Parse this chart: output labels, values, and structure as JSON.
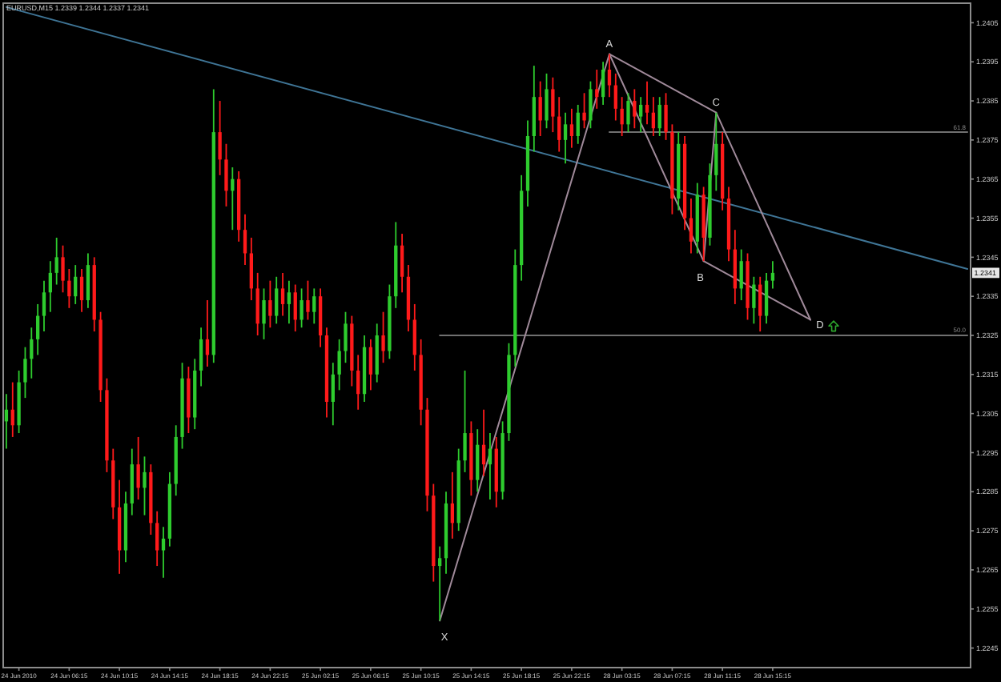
{
  "chart_data": {
    "type": "candlestick",
    "title": "EURUSD,M15 1.2339 1.2344 1.2337 1.2341",
    "categories": [
      null,
      null,
      "24 Jun 2010",
      null,
      null,
      null,
      null,
      null,
      null,
      null,
      "24 Jun 06:15",
      null,
      null,
      null,
      null,
      null,
      null,
      null,
      "24 Jun 10:15",
      null,
      null,
      null,
      null,
      null,
      null,
      null,
      "24 Jun 14:15",
      null,
      null,
      null,
      null,
      null,
      null,
      null,
      "24 Jun 18:15",
      null,
      null,
      null,
      null,
      null,
      null,
      null,
      "24 Jun 22:15",
      null,
      null,
      null,
      null,
      null,
      null,
      null,
      "25 Jun 02:15",
      null,
      null,
      null,
      null,
      null,
      null,
      null,
      "25 Jun 06:15",
      null,
      null,
      null,
      null,
      null,
      null,
      null,
      "25 Jun 10:15",
      null,
      null,
      null,
      null,
      null,
      null,
      null,
      "25 Jun 14:15",
      null,
      null,
      null,
      null,
      null,
      null,
      null,
      "25 Jun 18:15",
      null,
      null,
      null,
      null,
      null,
      null,
      null,
      "25 Jun 22:15",
      null,
      null,
      null,
      null,
      null,
      null,
      null,
      "28 Jun 03:15",
      null,
      null,
      null,
      null,
      null,
      null,
      null,
      "28 Jun 07:15",
      null,
      null,
      null,
      null,
      null,
      null,
      null,
      "28 Jun 11:15",
      null,
      null,
      null,
      null,
      null,
      null,
      null,
      "28 Jun 15:15",
      null,
      null,
      null,
      null,
      null,
      null,
      null,
      null,
      null,
      null,
      null,
      null,
      null,
      null,
      null,
      null,
      null,
      null,
      null,
      null,
      null,
      null,
      null,
      null,
      null,
      null,
      null,
      null,
      null,
      null,
      null
    ],
    "ylim": [
      1.224,
      1.241
    ],
    "yticks": [
      1.2245,
      1.2255,
      1.2265,
      1.2275,
      1.2285,
      1.2295,
      1.2305,
      1.2315,
      1.2325,
      1.2335,
      1.2345,
      1.2355,
      1.2365,
      1.2375,
      1.2385,
      1.2395,
      1.2405
    ],
    "series": [
      {
        "ohlc": [
          [
            1.2303,
            1.231,
            1.2296,
            1.2306
          ],
          [
            1.2306,
            1.2313,
            1.2299,
            1.2302
          ],
          [
            1.2302,
            1.2316,
            1.23,
            1.2313
          ],
          [
            1.2313,
            1.2322,
            1.2309,
            1.2319
          ],
          [
            1.2319,
            1.2327,
            1.2314,
            1.2324
          ],
          [
            1.2324,
            1.2333,
            1.232,
            1.233
          ],
          [
            1.233,
            1.2339,
            1.2326,
            1.2336
          ],
          [
            1.2336,
            1.2344,
            1.2331,
            1.2341
          ],
          [
            1.2341,
            1.235,
            1.2338,
            1.2345
          ],
          [
            1.2345,
            1.2348,
            1.2336,
            1.2339
          ],
          [
            1.2339,
            1.2342,
            1.2332,
            1.2335
          ],
          [
            1.2335,
            1.2343,
            1.2333,
            1.234
          ],
          [
            1.234,
            1.2342,
            1.2331,
            1.2334
          ],
          [
            1.2334,
            1.2346,
            1.2332,
            1.2343
          ],
          [
            1.2343,
            1.2345,
            1.2326,
            1.2329
          ],
          [
            1.2329,
            1.2331,
            1.2308,
            1.2311
          ],
          [
            1.2311,
            1.2314,
            1.229,
            1.2293
          ],
          [
            1.2293,
            1.2296,
            1.2278,
            1.2281
          ],
          [
            1.2281,
            1.2288,
            1.2264,
            1.227
          ],
          [
            1.227,
            1.2285,
            1.2267,
            1.2282
          ],
          [
            1.2282,
            1.2296,
            1.2279,
            1.2292
          ],
          [
            1.2292,
            1.2299,
            1.2283,
            1.2286
          ],
          [
            1.2286,
            1.2294,
            1.2279,
            1.229
          ],
          [
            1.229,
            1.2292,
            1.2274,
            1.2277
          ],
          [
            1.2277,
            1.228,
            1.2266,
            1.227
          ],
          [
            1.227,
            1.2276,
            1.2263,
            1.2273
          ],
          [
            1.2273,
            1.229,
            1.2271,
            1.2287
          ],
          [
            1.2287,
            1.2302,
            1.2284,
            1.2299
          ],
          [
            1.2299,
            1.2318,
            1.2296,
            1.2314
          ],
          [
            1.2314,
            1.2317,
            1.23,
            1.2304
          ],
          [
            1.2304,
            1.2319,
            1.2301,
            1.2316
          ],
          [
            1.2316,
            1.2327,
            1.2312,
            1.2324
          ],
          [
            1.2324,
            1.2334,
            1.2317,
            1.232
          ],
          [
            1.232,
            1.2388,
            1.2318,
            1.2377
          ],
          [
            1.2377,
            1.2385,
            1.2366,
            1.237
          ],
          [
            1.237,
            1.2374,
            1.2358,
            1.2362
          ],
          [
            1.2362,
            1.2368,
            1.2352,
            1.2365
          ],
          [
            1.2365,
            1.2367,
            1.2349,
            1.2352
          ],
          [
            1.2352,
            1.2356,
            1.2343,
            1.2346
          ],
          [
            1.2346,
            1.235,
            1.2334,
            1.2337
          ],
          [
            1.2337,
            1.2341,
            1.2325,
            1.2328
          ],
          [
            1.2328,
            1.2337,
            1.2324,
            1.2334
          ],
          [
            1.2334,
            1.2339,
            1.2327,
            1.233
          ],
          [
            1.233,
            1.234,
            1.2328,
            1.2337
          ],
          [
            1.2337,
            1.2341,
            1.233,
            1.2333
          ],
          [
            1.2333,
            1.2339,
            1.2328,
            1.2336
          ],
          [
            1.2336,
            1.2338,
            1.2326,
            1.2329
          ],
          [
            1.2329,
            1.2337,
            1.2327,
            1.2334
          ],
          [
            1.2334,
            1.2339,
            1.2329,
            1.2331
          ],
          [
            1.2331,
            1.2337,
            1.2328,
            1.2335
          ],
          [
            1.2335,
            1.2337,
            1.2322,
            1.2325
          ],
          [
            1.2325,
            1.2327,
            1.2304,
            1.2308
          ],
          [
            1.2308,
            1.2318,
            1.2302,
            1.2315
          ],
          [
            1.2315,
            1.2324,
            1.2311,
            1.2321
          ],
          [
            1.2321,
            1.2331,
            1.2318,
            1.2328
          ],
          [
            1.2328,
            1.233,
            1.2312,
            1.2316
          ],
          [
            1.2316,
            1.232,
            1.2306,
            1.231
          ],
          [
            1.231,
            1.2325,
            1.2308,
            1.2322
          ],
          [
            1.2322,
            1.2324,
            1.2311,
            1.2315
          ],
          [
            1.2315,
            1.2328,
            1.2313,
            1.2325
          ],
          [
            1.2325,
            1.2331,
            1.2318,
            1.2321
          ],
          [
            1.2321,
            1.2338,
            1.2319,
            1.2335
          ],
          [
            1.2335,
            1.2354,
            1.2332,
            1.2348
          ],
          [
            1.2348,
            1.2351,
            1.2336,
            1.234
          ],
          [
            1.234,
            1.2343,
            1.2326,
            1.2329
          ],
          [
            1.2329,
            1.2333,
            1.2316,
            1.232
          ],
          [
            1.232,
            1.2324,
            1.2302,
            1.2306
          ],
          [
            1.2306,
            1.2309,
            1.228,
            1.2284
          ],
          [
            1.2284,
            1.2287,
            1.2262,
            1.2266
          ],
          [
            1.2266,
            1.2271,
            1.2252,
            1.2268
          ],
          [
            1.2268,
            1.2285,
            1.2264,
            1.2282
          ],
          [
            1.2282,
            1.229,
            1.2273,
            1.2277
          ],
          [
            1.2277,
            1.2296,
            1.2275,
            1.2293
          ],
          [
            1.2293,
            1.2316,
            1.229,
            1.23
          ],
          [
            1.23,
            1.2303,
            1.2284,
            1.2288
          ],
          [
            1.2288,
            1.2301,
            1.2285,
            1.2297
          ],
          [
            1.2297,
            1.2306,
            1.2289,
            1.2292
          ],
          [
            1.2292,
            1.23,
            1.2283,
            1.2296
          ],
          [
            1.2296,
            1.2299,
            1.2281,
            1.2285
          ],
          [
            1.2285,
            1.2303,
            1.2283,
            1.23
          ],
          [
            1.23,
            1.2323,
            1.2298,
            1.232
          ],
          [
            1.232,
            1.2347,
            1.2317,
            1.2343
          ],
          [
            1.2343,
            1.2366,
            1.2339,
            1.2362
          ],
          [
            1.2362,
            1.238,
            1.2358,
            1.2376
          ],
          [
            1.2376,
            1.2394,
            1.2372,
            1.2386
          ],
          [
            1.2386,
            1.239,
            1.2376,
            1.238
          ],
          [
            1.238,
            1.2392,
            1.2378,
            1.2388
          ],
          [
            1.2388,
            1.2391,
            1.2377,
            1.2381
          ],
          [
            1.2381,
            1.2386,
            1.2372,
            1.2375
          ],
          [
            1.2375,
            1.2382,
            1.2369,
            1.2379
          ],
          [
            1.2379,
            1.2383,
            1.2373,
            1.2376
          ],
          [
            1.2376,
            1.2384,
            1.2374,
            1.2382
          ],
          [
            1.2382,
            1.2387,
            1.2378,
            1.238
          ],
          [
            1.238,
            1.239,
            1.2378,
            1.2388
          ],
          [
            1.2388,
            1.2393,
            1.2383,
            1.2386
          ],
          [
            1.2386,
            1.2395,
            1.2384,
            1.2393
          ],
          [
            1.2393,
            1.2397,
            1.2386,
            1.2389
          ],
          [
            1.2389,
            1.2392,
            1.238,
            1.2383
          ],
          [
            1.2383,
            1.2386,
            1.2376,
            1.2379
          ],
          [
            1.2379,
            1.2387,
            1.2377,
            1.2385
          ],
          [
            1.2385,
            1.2388,
            1.2378,
            1.2381
          ],
          [
            1.2381,
            1.2386,
            1.2377,
            1.2384
          ],
          [
            1.2384,
            1.239,
            1.2379,
            1.2382
          ],
          [
            1.2382,
            1.2386,
            1.2376,
            1.2378
          ],
          [
            1.2378,
            1.2386,
            1.2376,
            1.2384
          ],
          [
            1.2384,
            1.2387,
            1.2375,
            1.2377
          ],
          [
            1.2377,
            1.2379,
            1.2356,
            1.236
          ],
          [
            1.236,
            1.2377,
            1.2357,
            1.2374
          ],
          [
            1.2374,
            1.2376,
            1.2352,
            1.2355
          ],
          [
            1.2355,
            1.236,
            1.2346,
            1.2349
          ],
          [
            1.2349,
            1.2364,
            1.2346,
            1.2361
          ],
          [
            1.2361,
            1.2363,
            1.2344,
            1.235
          ],
          [
            1.235,
            1.2369,
            1.2348,
            1.2366
          ],
          [
            1.2366,
            1.2382,
            1.2362,
            1.2374
          ],
          [
            1.2374,
            1.2377,
            1.2357,
            1.236
          ],
          [
            1.236,
            1.2363,
            1.2344,
            1.2347
          ],
          [
            1.2347,
            1.2352,
            1.2333,
            1.2337
          ],
          [
            1.2337,
            1.2347,
            1.2334,
            1.2344
          ],
          [
            1.2344,
            1.2346,
            1.2329,
            1.2332
          ],
          [
            1.2332,
            1.234,
            1.2328,
            1.2338
          ],
          [
            1.2338,
            1.234,
            1.2326,
            1.233
          ],
          [
            1.233,
            1.2341,
            1.2328,
            1.2339
          ],
          [
            1.2339,
            1.2344,
            1.2337,
            1.2341
          ],
          null,
          null,
          null,
          null,
          null,
          null,
          null,
          null,
          null,
          null,
          null,
          null,
          null,
          null,
          null,
          null,
          null,
          null,
          null,
          null,
          null,
          null,
          null,
          null,
          null,
          null,
          null,
          null,
          null,
          null,
          null
        ],
        "colors": [
          "#2ecc2e",
          "#ff1a1a",
          "#2ecc2e",
          "#2ecc2e",
          "#2ecc2e",
          "#2ecc2e",
          "#2ecc2e",
          "#2ecc2e",
          "#2ecc2e",
          "#ff1a1a",
          "#ff1a1a",
          "#2ecc2e",
          "#ff1a1a",
          "#2ecc2e",
          "#ff1a1a",
          "#ff1a1a",
          "#ff1a1a",
          "#ff1a1a",
          "#ff1a1a",
          "#2ecc2e",
          "#2ecc2e",
          "#ff1a1a",
          "#2ecc2e",
          "#ff1a1a",
          "#ff1a1a",
          "#2ecc2e",
          "#2ecc2e",
          "#2ecc2e",
          "#2ecc2e",
          "#ff1a1a",
          "#2ecc2e",
          "#2ecc2e",
          "#ff1a1a",
          "#2ecc2e",
          "#ff1a1a",
          "#ff1a1a",
          "#2ecc2e",
          "#ff1a1a",
          "#ff1a1a",
          "#ff1a1a",
          "#ff1a1a",
          "#2ecc2e",
          "#ff1a1a",
          "#2ecc2e",
          "#ff1a1a",
          "#2ecc2e",
          "#ff1a1a",
          "#2ecc2e",
          "#ff1a1a",
          "#2ecc2e",
          "#ff1a1a",
          "#ff1a1a",
          "#2ecc2e",
          "#2ecc2e",
          "#2ecc2e",
          "#ff1a1a",
          "#ff1a1a",
          "#2ecc2e",
          "#ff1a1a",
          "#2ecc2e",
          "#ff1a1a",
          "#2ecc2e",
          "#2ecc2e",
          "#ff1a1a",
          "#ff1a1a",
          "#ff1a1a",
          "#ff1a1a",
          "#ff1a1a",
          "#ff1a1a",
          "#2ecc2e",
          "#2ecc2e",
          "#ff1a1a",
          "#2ecc2e",
          "#2ecc2e",
          "#ff1a1a",
          "#2ecc2e",
          "#ff1a1a",
          "#2ecc2e",
          "#ff1a1a",
          "#2ecc2e",
          "#2ecc2e",
          "#2ecc2e",
          "#2ecc2e",
          "#2ecc2e",
          "#2ecc2e",
          "#ff1a1a",
          "#2ecc2e",
          "#ff1a1a",
          "#ff1a1a",
          "#2ecc2e",
          "#ff1a1a",
          "#2ecc2e",
          "#ff1a1a",
          "#2ecc2e",
          "#ff1a1a",
          "#2ecc2e",
          "#ff1a1a",
          "#ff1a1a",
          "#ff1a1a",
          "#2ecc2e",
          "#ff1a1a",
          "#2ecc2e",
          "#ff1a1a",
          "#ff1a1a",
          "#2ecc2e",
          "#ff1a1a",
          "#ff1a1a",
          "#2ecc2e",
          "#ff1a1a",
          "#ff1a1a",
          "#2ecc2e",
          "#ff1a1a",
          "#2ecc2e",
          "#2ecc2e",
          "#ff1a1a",
          "#ff1a1a",
          "#ff1a1a",
          "#2ecc2e",
          "#ff1a1a",
          "#2ecc2e",
          "#ff1a1a",
          "#2ecc2e",
          "#2ecc2e",
          null,
          null,
          null,
          null,
          null,
          null,
          null,
          null,
          null,
          null,
          null,
          null,
          null,
          null,
          null,
          null,
          null,
          null,
          null,
          null,
          null,
          null,
          null,
          null,
          null,
          null,
          null,
          null,
          null,
          null,
          null
        ]
      },
      {
        "type": "line",
        "color": "#3f7596",
        "values": [
          1.2409,
          null,
          null,
          null,
          null,
          null,
          null,
          null,
          null,
          null,
          null,
          null,
          null,
          null,
          null,
          null,
          null,
          null,
          null,
          null,
          null,
          null,
          null,
          null,
          null,
          null,
          null,
          null,
          null,
          null,
          null,
          null,
          null,
          null,
          null,
          null,
          null,
          null,
          null,
          null,
          null,
          null,
          null,
          null,
          null,
          null,
          null,
          null,
          null,
          null,
          null,
          null,
          null,
          null,
          null,
          null,
          null,
          null,
          null,
          null,
          null,
          null,
          null,
          null,
          null,
          null,
          null,
          null,
          null,
          null,
          null,
          null,
          null,
          null,
          null,
          null,
          null,
          null,
          null,
          null,
          null,
          null,
          null,
          null,
          null,
          null,
          null,
          null,
          null,
          null,
          null,
          null,
          null,
          null,
          null,
          null,
          null,
          null,
          null,
          null,
          null,
          null,
          null,
          null,
          null,
          null,
          null,
          null,
          null,
          null,
          null,
          null,
          null,
          null,
          null,
          null,
          null,
          null,
          null,
          null,
          null,
          null,
          null,
          null,
          null,
          null,
          null,
          null,
          null,
          null,
          null,
          null,
          null,
          null,
          null,
          null,
          null,
          null,
          null,
          null,
          null,
          null,
          null,
          null,
          null,
          null,
          null,
          null,
          null,
          null,
          null,
          null,
          null,
          1.2342
        ]
      },
      {
        "type": "line",
        "name": "61.8",
        "color": "#707070",
        "values": [
          null,
          null,
          null,
          null,
          null,
          null,
          null,
          null,
          null,
          null,
          null,
          null,
          null,
          null,
          null,
          null,
          null,
          null,
          null,
          null,
          null,
          null,
          null,
          null,
          null,
          null,
          null,
          null,
          null,
          null,
          null,
          null,
          null,
          null,
          null,
          null,
          null,
          null,
          null,
          null,
          null,
          null,
          null,
          null,
          null,
          null,
          null,
          null,
          null,
          null,
          null,
          null,
          null,
          null,
          null,
          null,
          null,
          null,
          null,
          null,
          null,
          null,
          null,
          null,
          null,
          null,
          null,
          null,
          null,
          null,
          null,
          null,
          null,
          null,
          null,
          null,
          null,
          null,
          null,
          null,
          null,
          null,
          null,
          null,
          null,
          null,
          null,
          null,
          null,
          null,
          null,
          null,
          null,
          null,
          null,
          null,
          1.2377,
          null,
          null,
          null,
          null,
          null,
          null,
          null,
          null,
          null,
          null,
          null,
          null,
          null,
          null,
          null,
          null,
          null,
          null,
          null,
          null,
          null,
          null,
          null,
          null,
          null,
          null,
          null,
          null,
          null,
          null,
          null,
          null,
          null,
          null,
          null,
          null,
          null,
          null,
          null,
          null,
          null,
          null,
          null,
          null,
          null,
          null,
          null,
          null,
          null,
          null,
          null,
          null,
          null,
          null,
          null,
          null,
          1.2377
        ]
      },
      {
        "type": "line",
        "name": "50.0",
        "color": "#707070",
        "values": [
          null,
          null,
          null,
          null,
          null,
          null,
          null,
          null,
          null,
          null,
          null,
          null,
          null,
          null,
          null,
          null,
          null,
          null,
          null,
          null,
          null,
          null,
          null,
          null,
          null,
          null,
          null,
          null,
          null,
          null,
          null,
          null,
          null,
          null,
          null,
          null,
          null,
          null,
          null,
          null,
          null,
          null,
          null,
          null,
          null,
          null,
          null,
          null,
          null,
          null,
          null,
          null,
          null,
          null,
          null,
          null,
          null,
          null,
          null,
          null,
          null,
          null,
          null,
          null,
          null,
          null,
          null,
          null,
          null,
          1.2325,
          null,
          null,
          null,
          null,
          null,
          null,
          null,
          null,
          null,
          null,
          null,
          null,
          null,
          null,
          null,
          null,
          null,
          null,
          null,
          null,
          null,
          null,
          null,
          null,
          null,
          null,
          null,
          null,
          null,
          null,
          null,
          null,
          null,
          null,
          null,
          null,
          null,
          null,
          null,
          null,
          null,
          null,
          null,
          null,
          null,
          null,
          null,
          null,
          null,
          null,
          null,
          null,
          null,
          null,
          null,
          null,
          null,
          null,
          null,
          null,
          null,
          null,
          null,
          null,
          null,
          null,
          null,
          null,
          null,
          null,
          null,
          null,
          null,
          null,
          null,
          null,
          null,
          null,
          null,
          null,
          null,
          null,
          null,
          1.2325
        ]
      },
      {
        "type": "line",
        "color": "#a08a9a",
        "values": [
          null,
          null,
          null,
          null,
          null,
          null,
          null,
          null,
          null,
          null,
          null,
          null,
          null,
          null,
          null,
          null,
          null,
          null,
          null,
          null,
          null,
          null,
          null,
          null,
          null,
          null,
          null,
          null,
          null,
          null,
          null,
          null,
          null,
          null,
          null,
          null,
          null,
          null,
          null,
          null,
          null,
          null,
          null,
          null,
          null,
          null,
          null,
          null,
          null,
          null,
          null,
          null,
          null,
          null,
          null,
          null,
          null,
          null,
          null,
          null,
          null,
          null,
          null,
          null,
          null,
          null,
          null,
          null,
          null,
          1.2252,
          null,
          null,
          null,
          null,
          null,
          null,
          null,
          null,
          null,
          null,
          null,
          null,
          null,
          null,
          null,
          null,
          null,
          null,
          null,
          null,
          null,
          null,
          null,
          null,
          null,
          null,
          1.2397,
          null,
          null,
          null,
          null,
          null,
          null,
          null,
          null,
          null,
          null,
          null,
          null,
          null,
          null,
          1.2344,
          null,
          1.2382,
          null,
          null,
          null,
          null,
          null,
          null,
          null,
          null,
          null,
          null,
          null,
          null,
          null,
          null,
          1.2329,
          null,
          null,
          null,
          null,
          null,
          null,
          null,
          null,
          null,
          null,
          null,
          null,
          null,
          null,
          null,
          null,
          null,
          null,
          null,
          null,
          null,
          null,
          null,
          null,
          null
        ]
      },
      {
        "type": "line",
        "color": "#a08a9a",
        "values": [
          null,
          null,
          null,
          null,
          null,
          null,
          null,
          null,
          null,
          null,
          null,
          null,
          null,
          null,
          null,
          null,
          null,
          null,
          null,
          null,
          null,
          null,
          null,
          null,
          null,
          null,
          null,
          null,
          null,
          null,
          null,
          null,
          null,
          null,
          null,
          null,
          null,
          null,
          null,
          null,
          null,
          null,
          null,
          null,
          null,
          null,
          null,
          null,
          null,
          null,
          null,
          null,
          null,
          null,
          null,
          null,
          null,
          null,
          null,
          null,
          null,
          null,
          null,
          null,
          null,
          null,
          null,
          null,
          null,
          null,
          null,
          null,
          null,
          null,
          null,
          null,
          null,
          null,
          null,
          null,
          null,
          null,
          null,
          null,
          null,
          null,
          null,
          null,
          null,
          null,
          null,
          null,
          null,
          null,
          null,
          null,
          1.2397,
          null,
          null,
          null,
          null,
          null,
          null,
          null,
          null,
          null,
          null,
          null,
          null,
          null,
          null,
          null,
          null,
          1.2382,
          null,
          null,
          null,
          null,
          null,
          null,
          null,
          null,
          null,
          null,
          null,
          null,
          null,
          null,
          null,
          null,
          null,
          null,
          null,
          null,
          null,
          null,
          null,
          null,
          null,
          null,
          null,
          null,
          null,
          null,
          null,
          null,
          null,
          null,
          null,
          null,
          null,
          null,
          null,
          null
        ]
      },
      {
        "type": "line",
        "color": "#a08a9a",
        "values": [
          null,
          null,
          null,
          null,
          null,
          null,
          null,
          null,
          null,
          null,
          null,
          null,
          null,
          null,
          null,
          null,
          null,
          null,
          null,
          null,
          null,
          null,
          null,
          null,
          null,
          null,
          null,
          null,
          null,
          null,
          null,
          null,
          null,
          null,
          null,
          null,
          null,
          null,
          null,
          null,
          null,
          null,
          null,
          null,
          null,
          null,
          null,
          null,
          null,
          null,
          null,
          null,
          null,
          null,
          null,
          null,
          null,
          null,
          null,
          null,
          null,
          null,
          null,
          null,
          null,
          null,
          null,
          null,
          null,
          null,
          null,
          null,
          null,
          null,
          null,
          null,
          null,
          null,
          null,
          null,
          null,
          null,
          null,
          null,
          null,
          null,
          null,
          null,
          null,
          null,
          null,
          null,
          null,
          null,
          null,
          null,
          null,
          null,
          null,
          null,
          null,
          null,
          null,
          null,
          null,
          null,
          null,
          null,
          null,
          null,
          null,
          1.2344,
          null,
          null,
          null,
          null,
          null,
          null,
          null,
          null,
          null,
          null,
          null,
          null,
          null,
          null,
          null,
          null,
          1.2329,
          null,
          null,
          null,
          null,
          null,
          null,
          null,
          null,
          null,
          null,
          null,
          null,
          null,
          null,
          null,
          null,
          null,
          null,
          null,
          null,
          null,
          null,
          null,
          null,
          null
        ]
      }
    ],
    "annotations": [
      "X",
      "A",
      "B",
      "C",
      "D",
      {
        "text": "1.2341",
        "y": 1.2341
      }
    ]
  }
}
